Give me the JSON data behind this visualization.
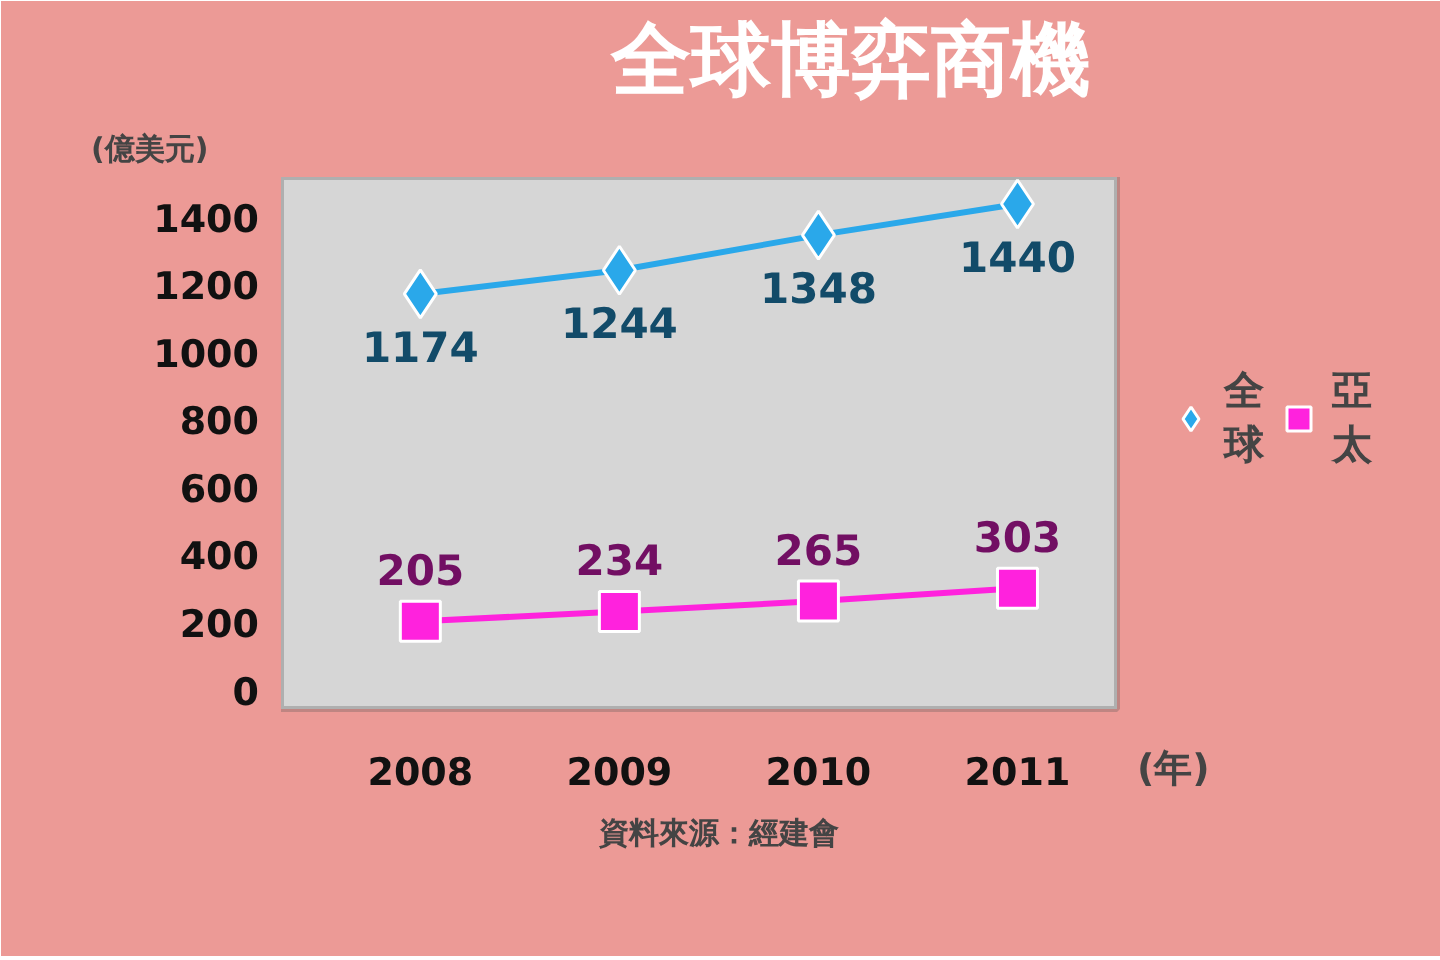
{
  "chart_data": {
    "type": "line",
    "title": "全球博弈商機",
    "ylabel": "(億美元)",
    "xlabel": "(年)",
    "categories": [
      "2008",
      "2009",
      "2010",
      "2011"
    ],
    "series": [
      {
        "name": "全球",
        "color": "#2aa8ea",
        "marker": "diamond",
        "values": [
          1174,
          1244,
          1348,
          1440
        ]
      },
      {
        "name": "亞太",
        "color": "#ff22dd",
        "marker": "square",
        "values": [
          205,
          234,
          265,
          303
        ]
      }
    ],
    "ylim": [
      -540,
      1520
    ],
    "yticks": [
      0,
      200,
      400,
      600,
      800,
      1000,
      1200,
      1400
    ],
    "grid": false,
    "legend": "right",
    "data_labels": true,
    "annotations": [
      "資料來源：經建會"
    ]
  }
}
